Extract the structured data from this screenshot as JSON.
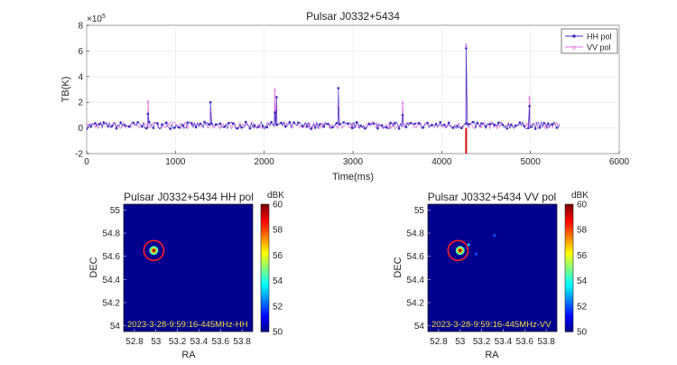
{
  "chart_data": [
    {
      "type": "line",
      "title": "Pulsar J0332+5434",
      "xlabel": "Time(ms)",
      "ylabel": "TB(K)",
      "y_exponent_label": "×10",
      "y_exponent_power": "5",
      "xlim": [
        0,
        6000
      ],
      "ylim": [
        -2,
        8
      ],
      "xticks": [
        0,
        1000,
        2000,
        3000,
        4000,
        5000,
        6000
      ],
      "yticks": [
        -2,
        0,
        2,
        4,
        6,
        8
      ],
      "grid": true,
      "legend_position": "top-right",
      "baseline": 0.2,
      "x_end": 5330,
      "series": [
        {
          "name": "HH pol",
          "color": "#3a2fbf"
        },
        {
          "name": "VV pol",
          "color": "#e070e0"
        }
      ],
      "pulses": [
        {
          "x": 690,
          "hh": 1.1,
          "vv": 2.1
        },
        {
          "x": 1395,
          "hh": 2.0,
          "vv": 1.3
        },
        {
          "x": 2120,
          "hh": 1.2,
          "vv": 3.0
        },
        {
          "x": 2140,
          "hh": 2.4,
          "vv": 1.6
        },
        {
          "x": 2835,
          "hh": 3.1,
          "vv": 1.8
        },
        {
          "x": 3560,
          "hh": 1.0,
          "vv": 2.0
        },
        {
          "x": 4275,
          "hh": 6.2,
          "vv": 6.5
        },
        {
          "x": 4990,
          "hh": 1.7,
          "vv": 2.4
        }
      ],
      "marker": {
        "x": 4275,
        "from": -2,
        "to": 0,
        "color": "#d01010"
      }
    },
    {
      "type": "heatmap",
      "title": "Pulsar J0332+5434 HH pol",
      "xlabel": "RA",
      "ylabel": "DEC",
      "xlim": [
        52.7,
        53.9
      ],
      "ylim": [
        53.95,
        55.05
      ],
      "xticks": [
        52.8,
        53,
        53.2,
        53.4,
        53.6,
        53.8
      ],
      "yticks": [
        54,
        54.2,
        54.4,
        54.6,
        54.8,
        55
      ],
      "annotation": "2023-3-28-9:59:16-445MHz-HH",
      "colorbar": {
        "label": "dBK",
        "min": 50,
        "max": 60,
        "ticks": [
          50,
          52,
          54,
          56,
          58,
          60
        ]
      },
      "source": {
        "ra": 52.98,
        "dec": 54.65,
        "value": 60
      },
      "sources": [],
      "circle": {
        "ra": 52.98,
        "dec": 54.65,
        "color": "#ff2020"
      }
    },
    {
      "type": "heatmap",
      "title": "Pulsar J0332+5434 VV pol",
      "xlabel": "RA",
      "ylabel": "DEC",
      "xlim": [
        52.7,
        53.9
      ],
      "ylim": [
        53.95,
        55.05
      ],
      "xticks": [
        52.8,
        53,
        53.2,
        53.4,
        53.6,
        53.8
      ],
      "yticks": [
        54,
        54.2,
        54.4,
        54.6,
        54.8,
        55
      ],
      "annotation": "2023-3-28-9:59:16-445MHz-VV",
      "colorbar": {
        "label": "dBK",
        "min": 50,
        "max": 60,
        "ticks": [
          50,
          52,
          54,
          56,
          58,
          60
        ]
      },
      "source": {
        "ra": 53.0,
        "dec": 54.65,
        "value": 60
      },
      "sources": [
        {
          "ra": 53.08,
          "dec": 54.7,
          "value": 53
        },
        {
          "ra": 53.15,
          "dec": 54.62,
          "value": 52
        },
        {
          "ra": 53.32,
          "dec": 54.78,
          "value": 52
        }
      ],
      "circle": {
        "ra": 52.98,
        "dec": 54.65,
        "color": "#ff2020"
      }
    }
  ]
}
